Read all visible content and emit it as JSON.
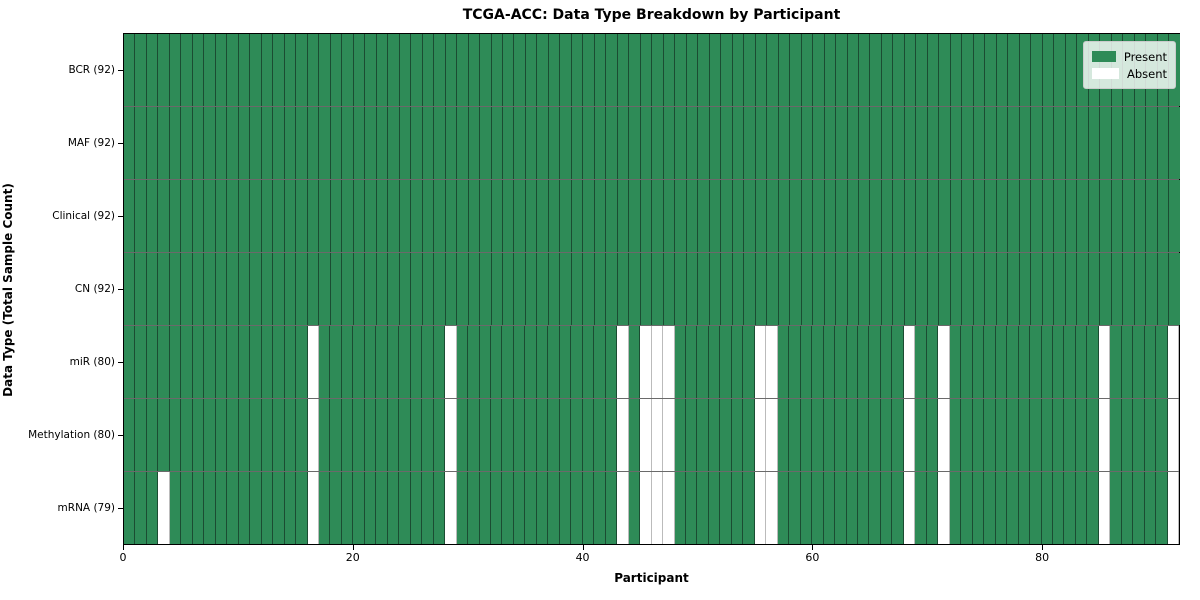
{
  "figure": {
    "title": "TCGA-ACC: Data Type Breakdown by Participant",
    "xlabel": "Participant",
    "ylabel": "Data Type (Total Sample Count)"
  },
  "legend": {
    "position": "upper right",
    "entries": [
      {
        "label": "Present",
        "color": "#2e8b57"
      },
      {
        "label": "Absent",
        "color": "#ffffff"
      }
    ]
  },
  "chart_data": {
    "type": "heatmap",
    "title": "TCGA-ACC: Data Type Breakdown by Participant",
    "xlabel": "Participant",
    "ylabel": "Data Type (Total Sample Count)",
    "x_range": [
      0,
      92
    ],
    "x_ticks": [
      0,
      20,
      40,
      60,
      80
    ],
    "n_participants": 92,
    "grid": "cell-edges",
    "present_color": "#2e8b57",
    "absent_color": "#ffffff",
    "rows": [
      {
        "label": "BCR (92)",
        "data_type": "BCR",
        "present_count": 92,
        "absent_participants": []
      },
      {
        "label": "MAF (92)",
        "data_type": "MAF",
        "present_count": 92,
        "absent_participants": []
      },
      {
        "label": "Clinical (92)",
        "data_type": "Clinical",
        "present_count": 92,
        "absent_participants": []
      },
      {
        "label": "CN (92)",
        "data_type": "CN",
        "present_count": 92,
        "absent_participants": []
      },
      {
        "label": "miR (80)",
        "data_type": "miR",
        "present_count": 80,
        "absent_participants": [
          16,
          28,
          43,
          45,
          46,
          47,
          55,
          56,
          68,
          71,
          85,
          91
        ]
      },
      {
        "label": "Methylation (80)",
        "data_type": "Methylation",
        "present_count": 80,
        "absent_participants": [
          16,
          28,
          43,
          45,
          46,
          47,
          55,
          56,
          68,
          71,
          85,
          91
        ]
      },
      {
        "label": "mRNA (79)",
        "data_type": "mRNA",
        "present_count": 79,
        "absent_participants": [
          3,
          16,
          28,
          43,
          45,
          46,
          47,
          55,
          56,
          68,
          71,
          85,
          91
        ]
      }
    ]
  }
}
